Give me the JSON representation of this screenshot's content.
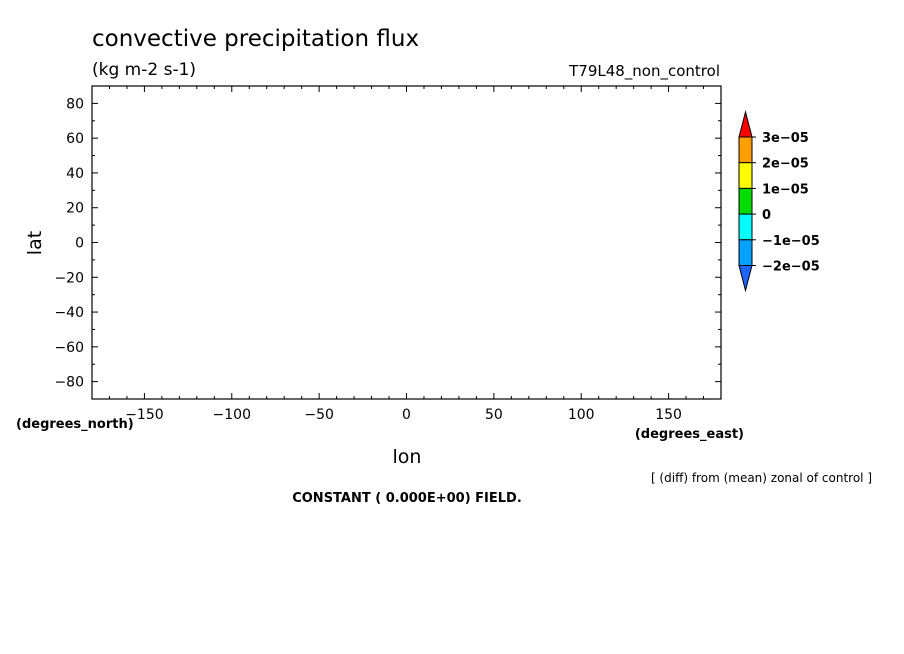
{
  "chart_data": {
    "type": "heatmap",
    "title": "convective precipitation flux",
    "units": "(kg m-2 s-1)",
    "dataset": "T79L48_non_control",
    "xlabel": "lon",
    "ylabel": "lat",
    "x_unit": "(degrees_east)",
    "y_unit": "(degrees_north)",
    "xlim": [
      -180,
      180
    ],
    "ylim": [
      -90,
      90
    ],
    "x_ticks": [
      -150,
      -100,
      -50,
      0,
      50,
      100,
      150
    ],
    "x_tick_labels": [
      "-150",
      "-100",
      "-50",
      "0",
      "50",
      "100",
      "150"
    ],
    "y_ticks": [
      80,
      60,
      40,
      20,
      0,
      -20,
      -40,
      -60,
      -80
    ],
    "y_tick_labels": [
      "80",
      "60",
      "40",
      "20",
      "0",
      "-20",
      "-40",
      "-60",
      "-80"
    ],
    "field_note": "CONSTANT ( 0.000E+00) FIELD.",
    "comparison_note": "[ (diff) from (mean) zonal of control ]",
    "colorbar": {
      "labels": [
        "3e-05",
        "2e-05",
        "1e-05",
        "0",
        "-1e-05",
        "-2e-05"
      ],
      "levels": [
        3e-05,
        2e-05,
        1e-05,
        0,
        -1e-05,
        -2e-05
      ],
      "colors": [
        "#ff0000",
        "#ffa000",
        "#ffff00",
        "#00dc00",
        "#00ffff",
        "#00a0ff",
        "#1e64ff"
      ]
    }
  }
}
